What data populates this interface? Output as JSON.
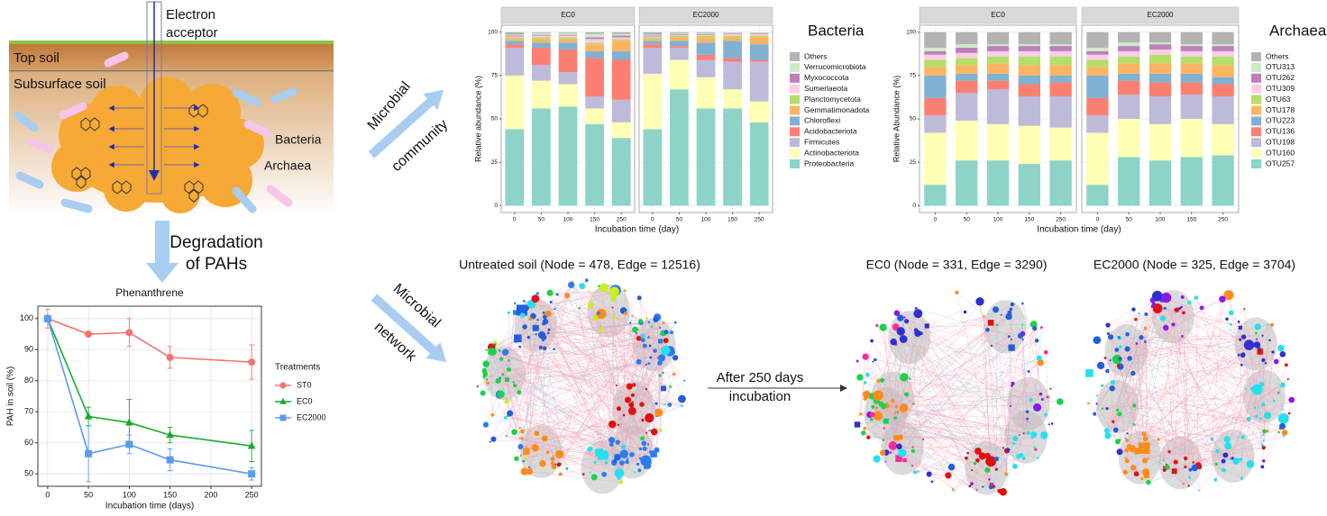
{
  "schematic": {
    "electron_acceptor": [
      "Electron",
      "acceptor"
    ],
    "top_soil": "Top soil",
    "subsurface_soil": "Subsurface soil",
    "bacteria": "Bacteria",
    "archaea": "Archaea"
  },
  "arrows": {
    "degradation": [
      "Degradation",
      "of PAHs"
    ],
    "community": [
      "Microbial",
      "community"
    ],
    "network": [
      "Microbial",
      "network"
    ],
    "after": [
      "After 250 days",
      "incubation"
    ]
  },
  "networks": [
    {
      "title": "Untreated soil (Node = 478, Edge = 12516)"
    },
    {
      "title": "EC0 (Node = 331, Edge = 3290)"
    },
    {
      "title": "EC2000 (Node = 325, Edge = 3704)"
    }
  ],
  "chart_data": [
    {
      "type": "line",
      "title": "Phenanthrene",
      "xlabel": "Incubation time (days)",
      "ylabel": "PAH in soil (%)",
      "x": [
        0,
        50,
        100,
        150,
        250
      ],
      "xlim": [
        -12,
        262
      ],
      "xticks": [
        0,
        50,
        100,
        150,
        200,
        250
      ],
      "ylim": [
        46,
        104
      ],
      "yticks": [
        50,
        60,
        70,
        80,
        90,
        100
      ],
      "grid": true,
      "legend_title": "Treatments",
      "series": [
        {
          "name": "ST0",
          "color": "#f07470",
          "marker": "circle",
          "values": [
            100,
            95,
            95.5,
            87.5,
            86
          ],
          "errors": [
            3,
            0.5,
            4.5,
            3.5,
            5.5
          ]
        },
        {
          "name": "EC0",
          "color": "#1aab2f",
          "marker": "triangle",
          "values": [
            100,
            68.5,
            66.5,
            62.5,
            59
          ],
          "errors": [
            1,
            3,
            7.5,
            2.5,
            5
          ]
        },
        {
          "name": "EC2000",
          "color": "#5b9bf0",
          "marker": "square",
          "values": [
            100,
            56.5,
            59.5,
            54.5,
            50
          ],
          "errors": [
            1,
            9,
            3,
            3.5,
            2
          ]
        }
      ]
    },
    {
      "type": "stacked_bar",
      "ylabel": "Relative abundance (%)",
      "xlabel": "Incubation time (day)",
      "legend_title": "Bacteria",
      "facets": [
        "EC0",
        "EC2000"
      ],
      "categories": [
        "0",
        "50",
        "100",
        "150",
        "250"
      ],
      "ylim": [
        -4,
        104
      ],
      "yticks": [
        0,
        25,
        50,
        75,
        100
      ],
      "series": [
        {
          "name": "Proteobacteria",
          "color": "#8dd3c7",
          "values": [
            [
              44,
              56,
              57,
              47,
              39
            ],
            [
              44,
              67,
              56,
              56,
              48
            ]
          ]
        },
        {
          "name": "Actinobacteriota",
          "color": "#ffffb3",
          "values": [
            [
              31,
              16,
              13,
              9,
              9
            ],
            [
              32,
              17,
              18,
              11,
              12
            ]
          ]
        },
        {
          "name": "Firmicutes",
          "color": "#bebada",
          "values": [
            [
              16,
              9,
              7,
              7,
              13
            ],
            [
              15,
              7,
              10,
              16,
              23
            ]
          ]
        },
        {
          "name": "Acidobacteriota",
          "color": "#fb8072",
          "values": [
            [
              2,
              10,
              13,
              22,
              23
            ],
            [
              2,
              1,
              3,
              2,
              1
            ]
          ]
        },
        {
          "name": "Chloroflexi",
          "color": "#80b1d3",
          "values": [
            [
              2,
              3,
              4,
              4,
              5
            ],
            [
              2,
              3,
              7,
              10,
              9
            ]
          ]
        },
        {
          "name": "Gemmatimonadota",
          "color": "#fdb462",
          "values": [
            [
              1,
              2,
              2,
              4,
              6
            ],
            [
              1,
              2,
              3,
              2,
              4
            ]
          ]
        },
        {
          "name": "Planctomycetota",
          "color": "#b3de69",
          "values": [
            [
              1,
              1,
              1,
              1,
              1
            ],
            [
              1,
              1,
              1,
              1,
              1
            ]
          ]
        },
        {
          "name": "Sumerlaeota",
          "color": "#fccde5",
          "values": [
            [
              0.5,
              1,
              1,
              2,
              1
            ],
            [
              0.5,
              0.5,
              0.5,
              1,
              1
            ]
          ]
        },
        {
          "name": "Myxococcota",
          "color": "#bc80bd",
          "values": [
            [
              0.5,
              0.5,
              0.5,
              1,
              1
            ],
            [
              0.5,
              0.5,
              0.5,
              0.5,
              0.5
            ]
          ]
        },
        {
          "name": "Verrucomicrobiota",
          "color": "#ccebc5",
          "values": [
            [
              0.5,
              1,
              1,
              2,
              1
            ],
            [
              0.5,
              0.5,
              0.5,
              0.5,
              0.5
            ]
          ]
        },
        {
          "name": "Others",
          "color": "#b3b3b3",
          "values": [
            [
              1.5,
              0.5,
              0.5,
              1,
              1
            ],
            [
              1.5,
              0.5,
              0.5,
              0,
              0
            ]
          ]
        }
      ]
    },
    {
      "type": "stacked_bar",
      "ylabel": "Relative Abundance (%)",
      "xlabel": "Incubation time (day)",
      "legend_title": "Archaea",
      "facets": [
        "EC0",
        "EC2000"
      ],
      "categories": [
        "0",
        "50",
        "100",
        "150",
        "250"
      ],
      "ylim": [
        -4,
        104
      ],
      "yticks": [
        0,
        25,
        50,
        75,
        100
      ],
      "series": [
        {
          "name": "OTU257",
          "color": "#8dd3c7",
          "values": [
            [
              12,
              26,
              26,
              24,
              26
            ],
            [
              12,
              28,
              26,
              28,
              29
            ]
          ]
        },
        {
          "name": "OTU160",
          "color": "#ffffb3",
          "values": [
            [
              30,
              23,
              21,
              22,
              19
            ],
            [
              30,
              22,
              21,
              22,
              18
            ]
          ]
        },
        {
          "name": "OTU198",
          "color": "#bebada",
          "values": [
            [
              10,
              16,
              20,
              17,
              18
            ],
            [
              10,
              14,
              16,
              14,
              16
            ]
          ]
        },
        {
          "name": "OTU136",
          "color": "#fb8072",
          "values": [
            [
              10,
              7,
              5,
              7,
              8
            ],
            [
              10,
              8,
              8,
              7,
              7
            ]
          ]
        },
        {
          "name": "OTU223",
          "color": "#80b1d3",
          "values": [
            [
              13,
              4,
              4,
              5,
              4
            ],
            [
              13,
              4,
              5,
              5,
              4
            ]
          ]
        },
        {
          "name": "OTU178",
          "color": "#fdb462",
          "values": [
            [
              5,
              5,
              6,
              6,
              6
            ],
            [
              5,
              6,
              6,
              6,
              7
            ]
          ]
        },
        {
          "name": "OTU63",
          "color": "#b3de69",
          "values": [
            [
              4,
              4,
              4,
              5,
              5
            ],
            [
              4,
              4,
              5,
              4,
              5
            ]
          ]
        },
        {
          "name": "OTU309",
          "color": "#fccde5",
          "values": [
            [
              3,
              3,
              3,
              3,
              3
            ],
            [
              3,
              3,
              3,
              3,
              3
            ]
          ]
        },
        {
          "name": "OTU262",
          "color": "#bc80bd",
          "values": [
            [
              2,
              3,
              3,
              3,
              3
            ],
            [
              2,
              3,
              3,
              3,
              3
            ]
          ]
        },
        {
          "name": "OTU313",
          "color": "#ccebc5",
          "values": [
            [
              2,
              2,
              1,
              1,
              1
            ],
            [
              2,
              2,
              1,
              1,
              1
            ]
          ]
        },
        {
          "name": "Others",
          "color": "#b3b3b3",
          "values": [
            [
              9,
              7,
              7,
              7,
              7
            ],
            [
              9,
              6,
              6,
              7,
              7
            ]
          ]
        }
      ]
    }
  ]
}
